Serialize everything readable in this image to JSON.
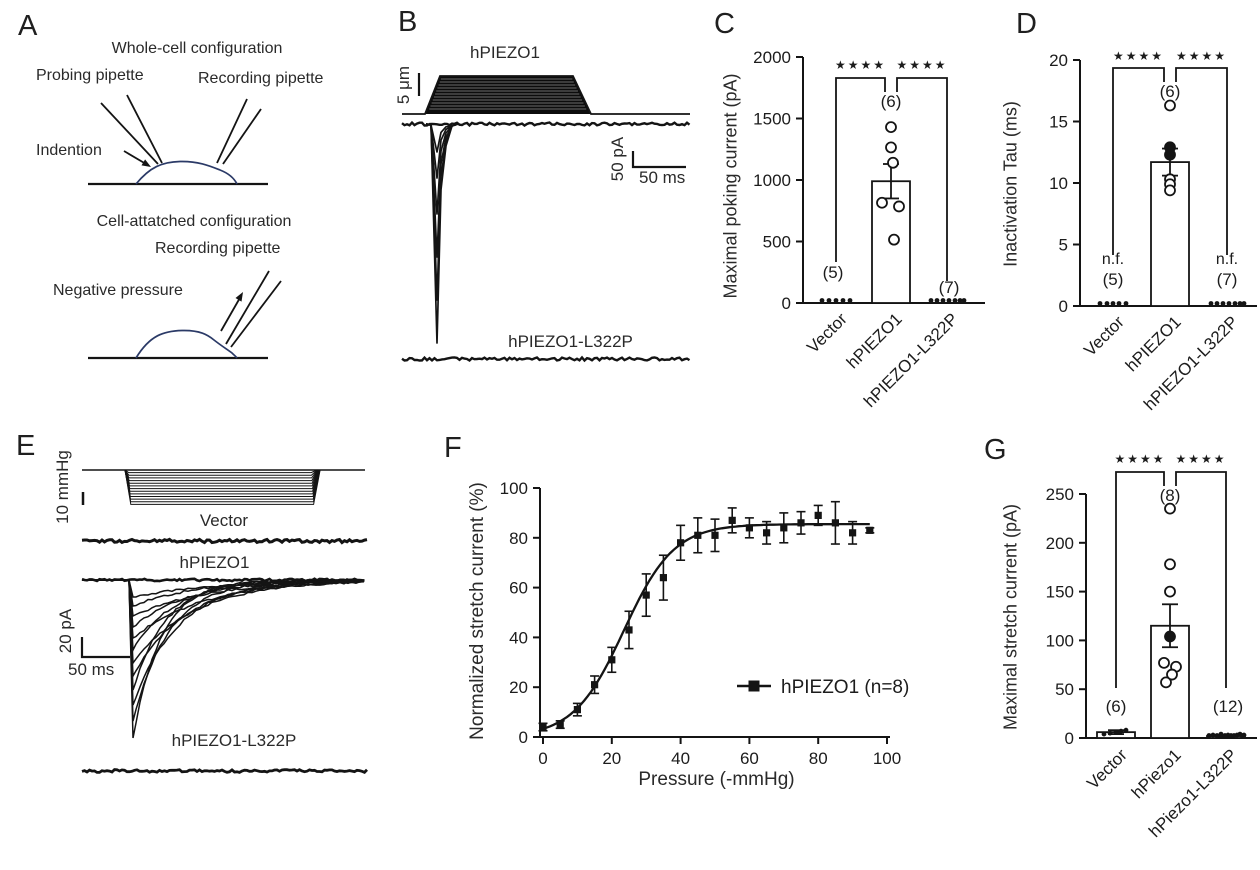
{
  "figure": {
    "background": "#ffffff",
    "ink": "#1a1a1a",
    "cell_outline_color": "#2b3a67"
  },
  "panels": {
    "A": {
      "label": "A",
      "top_title": "Whole-cell configuration",
      "probing_pipette_label": "Probing pipette",
      "recording_pipette_label": "Recording pipette",
      "indention_label": "Indention",
      "bottom_title": "Cell-attatched configuration",
      "recording_pipette_label_2": "Recording pipette",
      "negative_pressure_label": "Negative pressure"
    },
    "B": {
      "label": "B",
      "trace_label_top": "hPIEZO1",
      "displacement_scale": "5 μm",
      "current_scale": "50 pA",
      "time_scale": "50 ms",
      "trace_label_bottom": "hPIEZO1-L322P"
    },
    "C": {
      "label": "C"
    },
    "D": {
      "label": "D"
    },
    "E": {
      "label": "E",
      "pressure_scale": "10 mmHg",
      "trace_label_1": "Vector",
      "trace_label_2": "hPIEZO1",
      "current_scale": "20 pA",
      "time_scale": "50 ms",
      "trace_label_3": "hPIEZO1-L322P"
    },
    "F": {
      "label": "F"
    },
    "G": {
      "label": "G"
    }
  },
  "chart_data": [
    {
      "id": "C",
      "type": "bar",
      "ylabel": "Maximal poking current (pA)",
      "ylim": [
        0,
        2000
      ],
      "yticks": [
        0,
        500,
        1000,
        1500,
        2000
      ],
      "categories": [
        "Vector",
        "hPIEZO1",
        "hPIEZO1-L322P"
      ],
      "n_labels": [
        "(5)",
        "(6)",
        "(7)"
      ],
      "bar_means": [
        0,
        990,
        0
      ],
      "bar_sems": [
        0,
        140,
        0
      ],
      "points": [
        [
          0,
          0,
          0,
          0,
          0
        ],
        [
          1430,
          1265,
          1140,
          815,
          785,
          515
        ],
        [
          0,
          0,
          0,
          0,
          0,
          0,
          0
        ]
      ],
      "points_filled": [
        [
          true,
          true,
          true,
          true,
          true
        ],
        [
          false,
          false,
          false,
          false,
          false,
          false
        ],
        [
          true,
          true,
          true,
          true,
          true,
          true,
          true
        ]
      ],
      "significance": [
        {
          "groups": [
            "Vector",
            "hPIEZO1"
          ],
          "label": "****"
        },
        {
          "groups": [
            "hPIEZO1",
            "hPIEZO1-L322P"
          ],
          "label": "****"
        }
      ]
    },
    {
      "id": "D",
      "type": "bar",
      "ylabel": "Inactivation Tau (ms)",
      "ylim": [
        0,
        20
      ],
      "yticks": [
        0,
        5,
        10,
        15,
        20
      ],
      "categories": [
        "Vector",
        "hPIEZO1",
        "hPIEZO1-L322P"
      ],
      "n_labels": [
        "(5)",
        "(6)",
        "(7)"
      ],
      "no_fit_labels": [
        "n.f.",
        null,
        "n.f."
      ],
      "bar_means": [
        0,
        11.7,
        0
      ],
      "bar_sems": [
        0,
        1.1,
        0
      ],
      "points": [
        [
          0,
          0,
          0,
          0,
          0
        ],
        [
          16.3,
          12.9,
          12.3,
          10.3,
          9.9,
          9.4
        ],
        [
          0,
          0,
          0,
          0,
          0,
          0,
          0
        ]
      ],
      "points_filled": [
        [
          true,
          true,
          true,
          true,
          true
        ],
        [
          false,
          true,
          true,
          false,
          false,
          false
        ],
        [
          true,
          true,
          true,
          true,
          true,
          true,
          true
        ]
      ],
      "significance": [
        {
          "groups": [
            "Vector",
            "hPIEZO1"
          ],
          "label": "****"
        },
        {
          "groups": [
            "hPIEZO1",
            "hPIEZO1-L322P"
          ],
          "label": "****"
        }
      ]
    },
    {
      "id": "F",
      "type": "line-scatter",
      "xlabel": "Pressure (-mmHg)",
      "ylabel": "Normalized stretch current (%)",
      "xlim": [
        0,
        100
      ],
      "ylim": [
        0,
        100
      ],
      "xticks": [
        0,
        20,
        40,
        60,
        80,
        100
      ],
      "yticks": [
        0,
        20,
        40,
        60,
        80,
        100
      ],
      "grid": false,
      "series": [
        {
          "name": "hPIEZO1 (n=8)",
          "marker": "filled-square",
          "x": [
            0,
            5,
            10,
            15,
            20,
            25,
            30,
            35,
            40,
            45,
            50,
            55,
            60,
            65,
            70,
            75,
            80,
            85,
            90,
            95
          ],
          "y": [
            4,
            5,
            11,
            21,
            31,
            43,
            57,
            64,
            78,
            81,
            81,
            87,
            84,
            82,
            84,
            86,
            89,
            86,
            82,
            83
          ],
          "yerr": [
            1.5,
            1.5,
            2.5,
            3.5,
            5,
            7.5,
            8.5,
            9,
            7,
            7,
            6.5,
            5,
            4,
            4.5,
            6,
            4.5,
            4,
            8.5,
            4.5,
            1
          ],
          "fit": {
            "type": "boltzmann",
            "ymax": 85.5,
            "p50": 23.5,
            "slope": 7.3
          }
        }
      ],
      "legend": {
        "position": "lower-right",
        "entries": [
          "hPIEZO1 (n=8)"
        ]
      }
    },
    {
      "id": "G",
      "type": "bar",
      "ylabel": "Maximal stretch current (pA)",
      "ylim": [
        0,
        250
      ],
      "yticks": [
        0,
        50,
        100,
        150,
        200,
        250
      ],
      "categories": [
        "Vector",
        "hPiezo1",
        "hPiezo1-L322P"
      ],
      "n_labels": [
        "(6)",
        "(8)",
        "(12)"
      ],
      "bar_means": [
        6,
        115,
        2
      ],
      "bar_sems": [
        2,
        22,
        1
      ],
      "points": [
        [
          4,
          5,
          6,
          7,
          8,
          6
        ],
        [
          235,
          178,
          150,
          104,
          77,
          73,
          65,
          57
        ],
        [
          2,
          3,
          1,
          4,
          2,
          3,
          1,
          2,
          3,
          4,
          2,
          3
        ]
      ],
      "points_filled": [
        [
          true,
          true,
          true,
          true,
          true,
          true
        ],
        [
          false,
          false,
          false,
          true,
          false,
          false,
          false,
          false
        ],
        [
          true,
          true,
          true,
          true,
          true,
          true,
          true,
          true,
          true,
          true,
          true,
          true
        ]
      ],
      "significance": [
        {
          "groups": [
            "Vector",
            "hPiezo1"
          ],
          "label": "****"
        },
        {
          "groups": [
            "hPiezo1",
            "hPiezo1-L322P"
          ],
          "label": "****"
        }
      ]
    }
  ]
}
